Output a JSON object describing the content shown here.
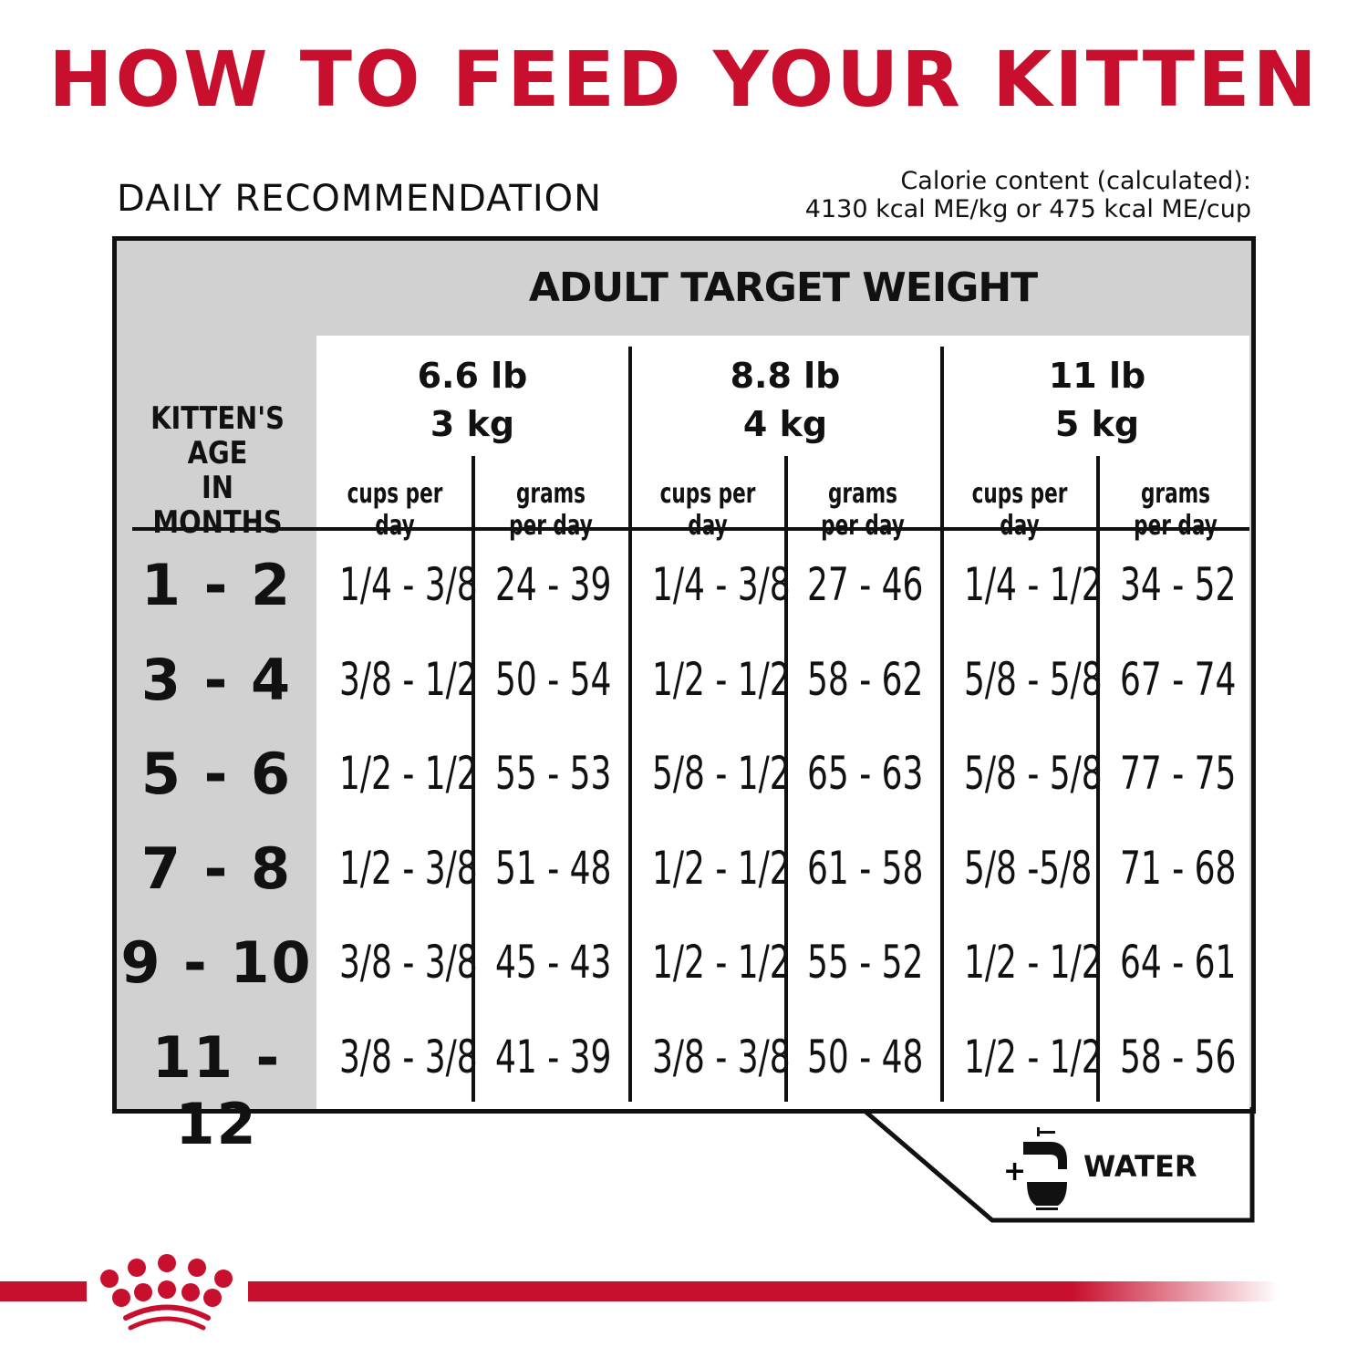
{
  "title": "HOW TO FEED YOUR KITTEN",
  "daily_label": "DAILY RECOMMENDATION",
  "calorie": {
    "line1": "Calorie content (calculated):",
    "line2": "4130 kcal ME/kg or 475 kcal ME/cup"
  },
  "table": {
    "group_header": "ADULT TARGET WEIGHT",
    "age_header": [
      "KITTEN'S",
      "AGE",
      "IN MONTHS"
    ],
    "weights": [
      {
        "lb": "6.6 lb",
        "kg": "3 kg"
      },
      {
        "lb": "8.8 lb",
        "kg": "4 kg"
      },
      {
        "lb": "11 lb",
        "kg": "5 kg"
      }
    ],
    "sub_headers": [
      "cups per day",
      "grams per day",
      "cups per day",
      "grams per day",
      "cups per day",
      "grams per day"
    ],
    "rows": [
      {
        "age": "1 - 2",
        "cells": [
          "1/4 - 3/8",
          "24 - 39",
          "1/4 - 3/8",
          "27 - 46",
          "1/4 - 1/2",
          "34 - 52"
        ]
      },
      {
        "age": "3 - 4",
        "cells": [
          "3/8 - 1/2",
          "50 - 54",
          "1/2 - 1/2",
          "58 - 62",
          "5/8 - 5/8",
          "67 - 74"
        ]
      },
      {
        "age": "5 - 6",
        "cells": [
          "1/2 - 1/2",
          "55 - 53",
          "5/8 - 1/2",
          "65 - 63",
          "5/8 - 5/8",
          "77 - 75"
        ]
      },
      {
        "age": "7 - 8",
        "cells": [
          "1/2 - 3/8",
          "51 - 48",
          "1/2 - 1/2",
          "61 - 58",
          "5/8 -5/8",
          "71 - 68"
        ]
      },
      {
        "age": "9 - 10",
        "cells": [
          "3/8 - 3/8",
          "45 - 43",
          "1/2 - 1/2",
          "55 - 52",
          "1/2 - 1/2",
          "64 - 61"
        ]
      },
      {
        "age": "11 - 12",
        "cells": [
          "3/8 - 3/8",
          "41 - 39",
          "3/8 - 3/8",
          "50 - 48",
          "1/2 - 1/2",
          "58 - 56"
        ]
      }
    ]
  },
  "water": {
    "plus": "+",
    "label": "WATER",
    "icon": "faucet-bowl-icon"
  },
  "logo": "royal-canin-crown-logo",
  "colors": {
    "brand_red": "#c8102e",
    "header_gray": "#d1d1d1"
  }
}
